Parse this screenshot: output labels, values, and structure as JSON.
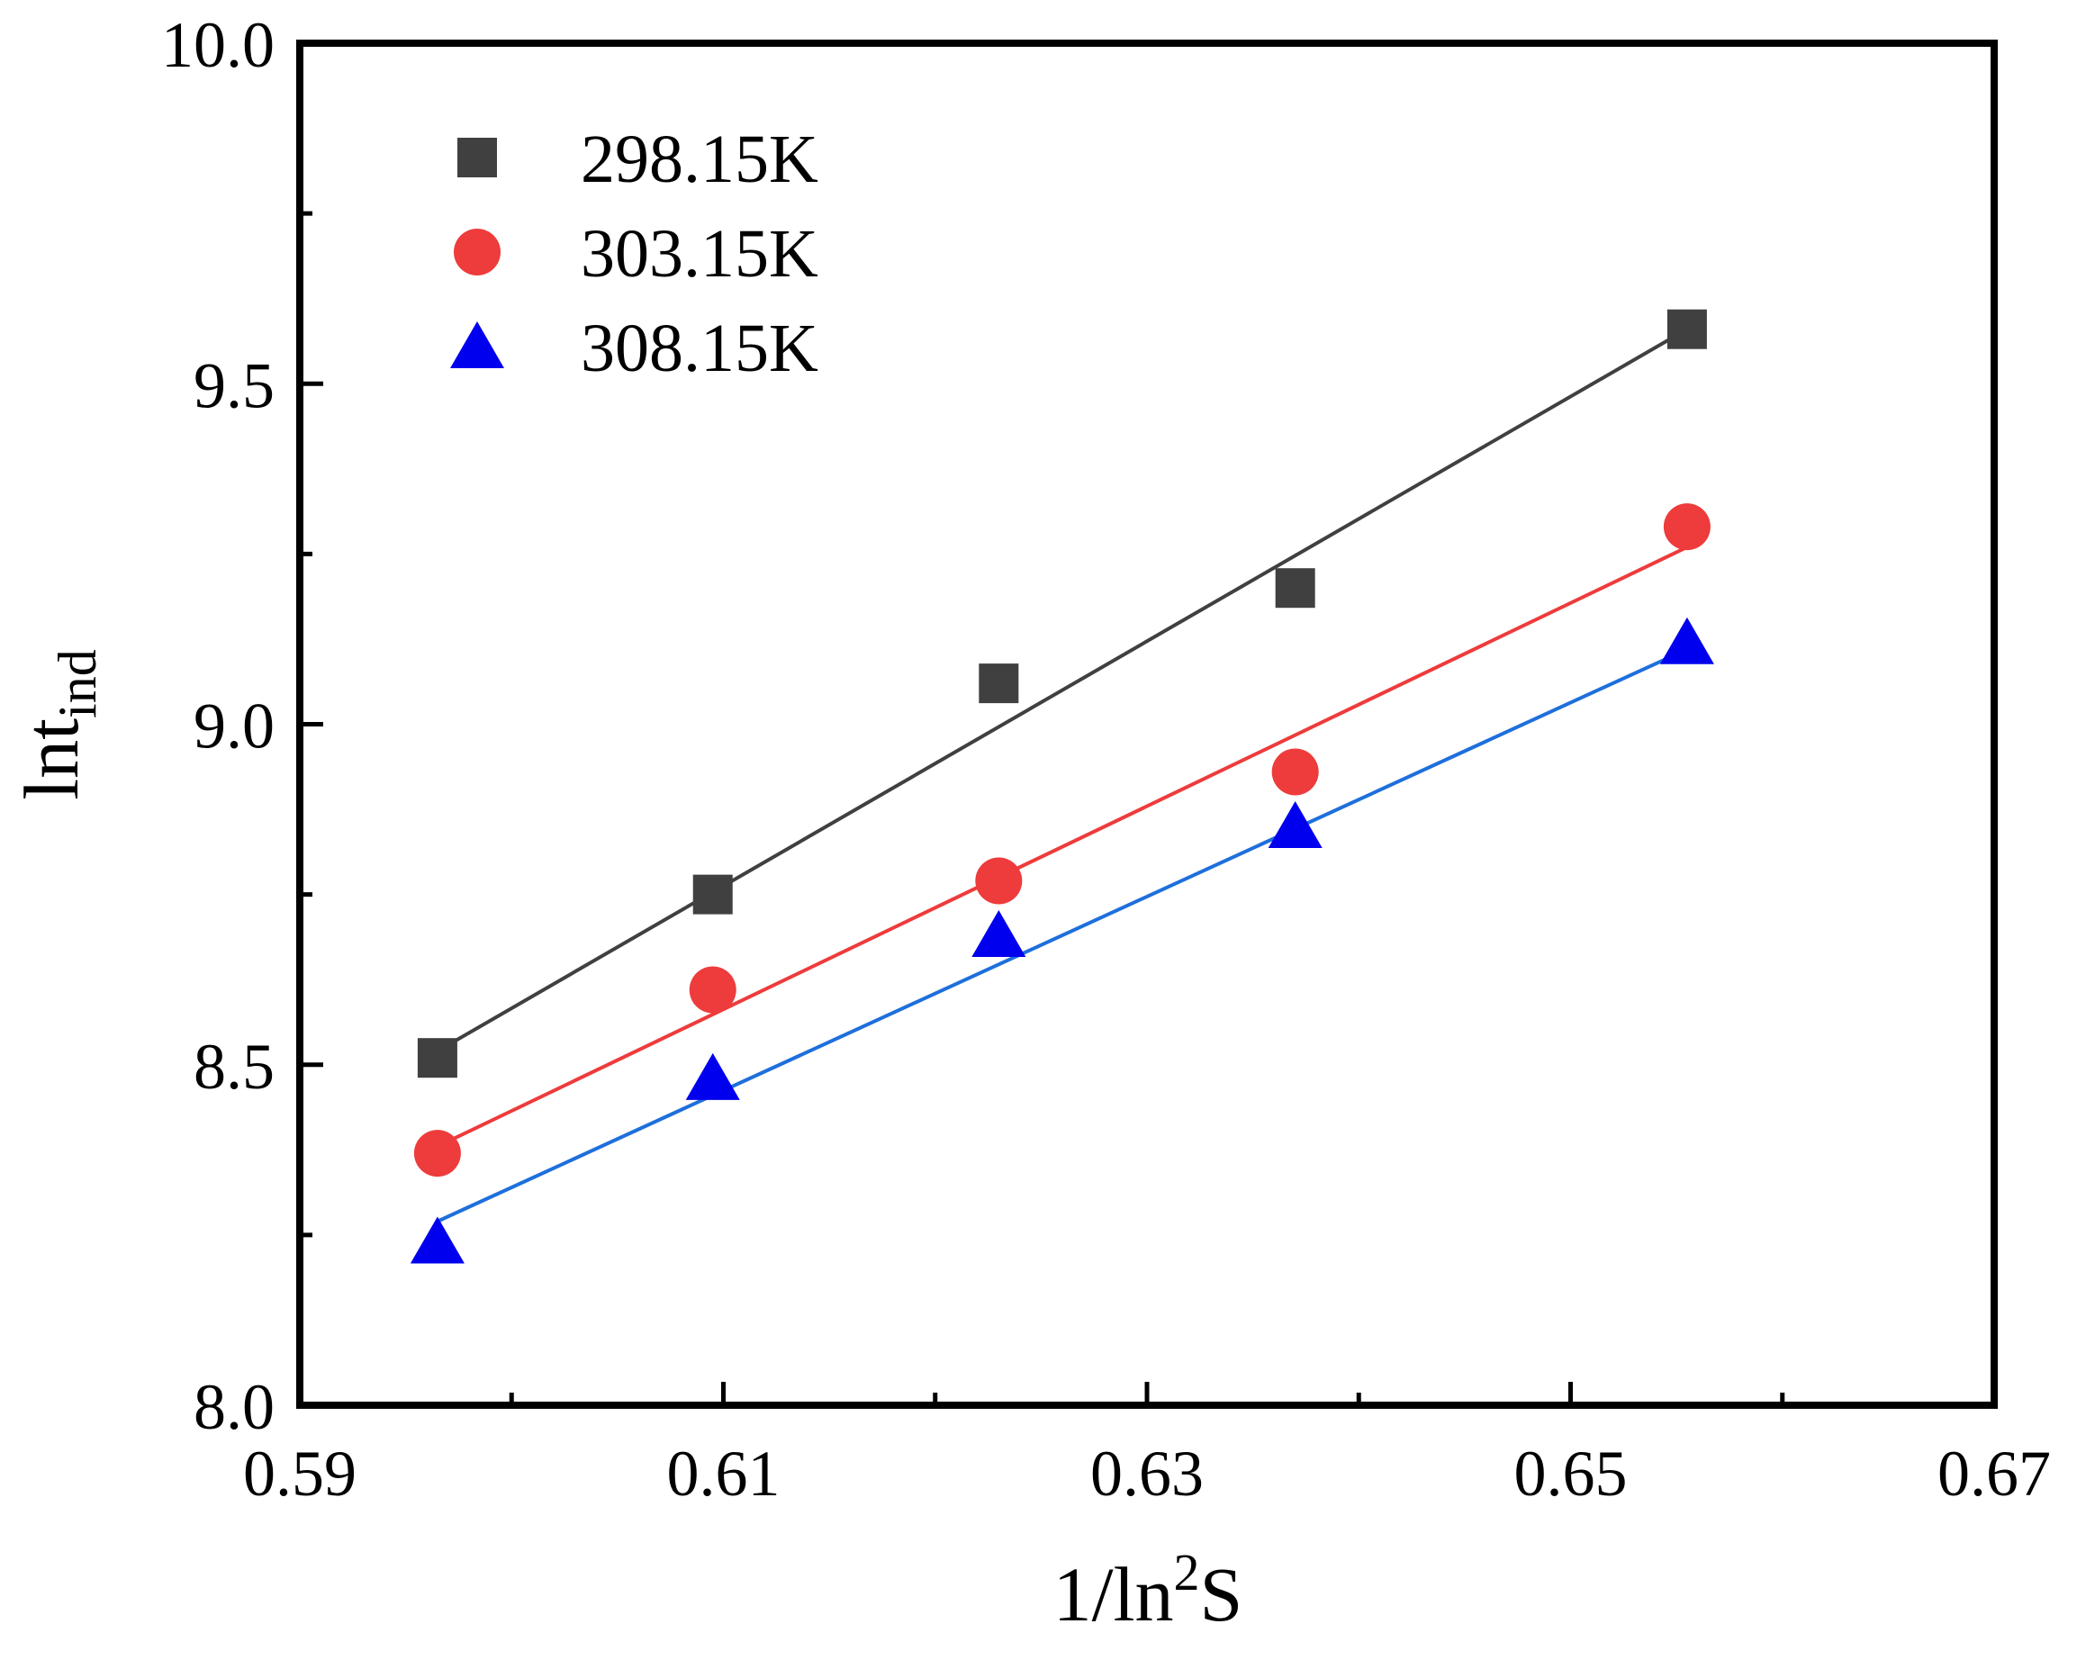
{
  "chart_data": {
    "type": "scatter",
    "title": "",
    "xlabel": {
      "main": "1/ln",
      "sup": "2",
      "tail": "S"
    },
    "ylabel": {
      "main": "lnt",
      "sub": "ind"
    },
    "xlim": [
      0.59,
      0.67
    ],
    "ylim": [
      8.0,
      10.0
    ],
    "x_major_ticks": [
      0.59,
      0.61,
      0.63,
      0.65,
      0.67
    ],
    "x_tick_labels": [
      "0.59",
      "0.61",
      "0.63",
      "0.65",
      "0.67"
    ],
    "x_minor_ticks": [
      0.6,
      0.62,
      0.64,
      0.66
    ],
    "y_major_ticks": [
      8.0,
      8.5,
      9.0,
      9.5,
      10.0
    ],
    "y_tick_labels": [
      "8.0",
      "8.5",
      "9.0",
      "9.5",
      "10.0"
    ],
    "y_minor_ticks": [
      8.25,
      8.75,
      9.25,
      9.75
    ],
    "grid": false,
    "legend_position": "top-left",
    "x": [
      0.5965,
      0.6095,
      0.623,
      0.637,
      0.6555
    ],
    "series": [
      {
        "name": "298.15K",
        "marker": "square",
        "color": "#404040",
        "line_color": "#404040",
        "values": [
          8.51,
          8.75,
          9.06,
          9.2,
          9.58
        ],
        "fit": [
          8.52,
          9.58
        ]
      },
      {
        "name": "303.15K",
        "marker": "circle",
        "color": "#ee3b3b",
        "line_color": "#ee3b3b",
        "values": [
          8.37,
          8.61,
          8.77,
          8.93,
          9.29
        ],
        "fit": [
          8.38,
          9.26
        ]
      },
      {
        "name": "308.15K",
        "marker": "triangle",
        "color": "#0000ee",
        "line_color": "#1e6fdc",
        "values": [
          8.24,
          8.48,
          8.69,
          8.85,
          9.12
        ],
        "fit": [
          8.27,
          9.11
        ]
      }
    ]
  }
}
